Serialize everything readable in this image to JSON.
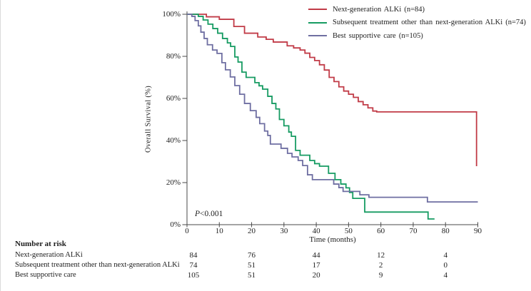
{
  "chart_data": {
    "type": "line",
    "subtype": "kaplan-meier-step",
    "title": "",
    "xlabel": "Time (months)",
    "ylabel": "Overall Survival (%)",
    "xlim": [
      0,
      90
    ],
    "ylim": [
      0,
      100
    ],
    "xticks": [
      0,
      10,
      20,
      30,
      40,
      50,
      60,
      70,
      80,
      90
    ],
    "ytick_labels": [
      "0%",
      "20%",
      "40%",
      "60%",
      "80%",
      "100%"
    ],
    "grid": false,
    "legend_position": "top-right",
    "p_value": {
      "label": "P",
      "value": "<0.001"
    },
    "series": [
      {
        "name": "Next-generation ALKi (n=84)",
        "color": "#c13b47",
        "steps": [
          [
            0,
            100
          ],
          [
            6,
            98.8
          ],
          [
            10,
            97.6
          ],
          [
            14.5,
            94.2
          ],
          [
            17.8,
            91
          ],
          [
            21.9,
            89.2
          ],
          [
            24.5,
            88.1
          ],
          [
            26.7,
            86.8
          ],
          [
            31,
            85
          ],
          [
            33,
            84
          ],
          [
            35,
            83
          ],
          [
            36.5,
            81.5
          ],
          [
            38,
            79.5
          ],
          [
            39.5,
            78
          ],
          [
            41,
            76
          ],
          [
            42.5,
            73.5
          ],
          [
            44,
            70
          ],
          [
            45.5,
            68
          ],
          [
            47,
            65.5
          ],
          [
            48.5,
            63.5
          ],
          [
            50,
            62
          ],
          [
            51.5,
            60.5
          ],
          [
            53,
            58.5
          ],
          [
            54.5,
            57
          ],
          [
            56,
            55.5
          ],
          [
            57.5,
            54
          ],
          [
            58.7,
            53.6
          ],
          [
            89.6,
            53.6
          ],
          [
            89.6,
            27.8
          ]
        ]
      },
      {
        "name": "Subsequent treatment other than next-generation ALKi (n=74)",
        "color": "#169b62",
        "steps": [
          [
            0,
            100
          ],
          [
            3.5,
            99
          ],
          [
            5,
            97.3
          ],
          [
            6.5,
            95.3
          ],
          [
            8,
            93.2
          ],
          [
            9.5,
            91
          ],
          [
            11,
            88.5
          ],
          [
            12.5,
            86.4
          ],
          [
            13.5,
            84.7
          ],
          [
            14.8,
            79.7
          ],
          [
            15.8,
            77.3
          ],
          [
            17,
            72.5
          ],
          [
            18.3,
            70
          ],
          [
            21,
            67.5
          ],
          [
            22.3,
            66
          ],
          [
            23.4,
            64.4
          ],
          [
            25,
            61
          ],
          [
            26.3,
            57.6
          ],
          [
            27.5,
            55
          ],
          [
            28.6,
            50
          ],
          [
            30,
            47
          ],
          [
            31.5,
            44
          ],
          [
            32.3,
            42
          ],
          [
            33.6,
            35.3
          ],
          [
            35,
            33
          ],
          [
            38,
            30.5
          ],
          [
            39.5,
            29
          ],
          [
            41,
            27.8
          ],
          [
            43.8,
            24.4
          ],
          [
            45.8,
            21.4
          ],
          [
            47.6,
            19.3
          ],
          [
            49.2,
            17.5
          ],
          [
            50.3,
            15.3
          ],
          [
            51.3,
            12.5
          ],
          [
            55,
            6
          ],
          [
            74.2,
            6
          ],
          [
            74.6,
            2.7
          ],
          [
            76.6,
            2.7
          ]
        ]
      },
      {
        "name": "Best supportive care (n=105)",
        "color": "#6f6fa2",
        "steps": [
          [
            0,
            100
          ],
          [
            1.5,
            99
          ],
          [
            2.5,
            97
          ],
          [
            3.5,
            94.5
          ],
          [
            4.3,
            91.5
          ],
          [
            5.3,
            88.5
          ],
          [
            6.3,
            85.5
          ],
          [
            7.9,
            83
          ],
          [
            9.3,
            81.4
          ],
          [
            10.8,
            77
          ],
          [
            11.9,
            73.6
          ],
          [
            13.4,
            70.2
          ],
          [
            14.8,
            66.1
          ],
          [
            16.3,
            62
          ],
          [
            17.8,
            57.6
          ],
          [
            19.6,
            54.2
          ],
          [
            21.4,
            51
          ],
          [
            22.5,
            48
          ],
          [
            24,
            44.5
          ],
          [
            25,
            42.4
          ],
          [
            25.8,
            38.3
          ],
          [
            29.1,
            36.3
          ],
          [
            31.1,
            33.9
          ],
          [
            32.5,
            32.2
          ],
          [
            34.4,
            30.5
          ],
          [
            35.8,
            28.1
          ],
          [
            37.3,
            23.7
          ],
          [
            38.8,
            21.4
          ],
          [
            45.4,
            19.3
          ],
          [
            47,
            17.6
          ],
          [
            48.3,
            15.8
          ],
          [
            53.5,
            14.2
          ],
          [
            56.3,
            13
          ],
          [
            74.4,
            10.8
          ],
          [
            90,
            10.8
          ]
        ]
      }
    ]
  },
  "risk_table": {
    "title": "Number at risk",
    "time_points": [
      0,
      20,
      40,
      60,
      80
    ],
    "rows": [
      {
        "label": "Next-generation ALKi",
        "counts": [
          84,
          76,
          44,
          12,
          4
        ]
      },
      {
        "label": "Subsequent treatment other than next-generation ALKi",
        "counts": [
          74,
          51,
          17,
          2,
          0
        ]
      },
      {
        "label": "Best supportive care",
        "counts": [
          105,
          51,
          20,
          9,
          4
        ]
      }
    ]
  }
}
